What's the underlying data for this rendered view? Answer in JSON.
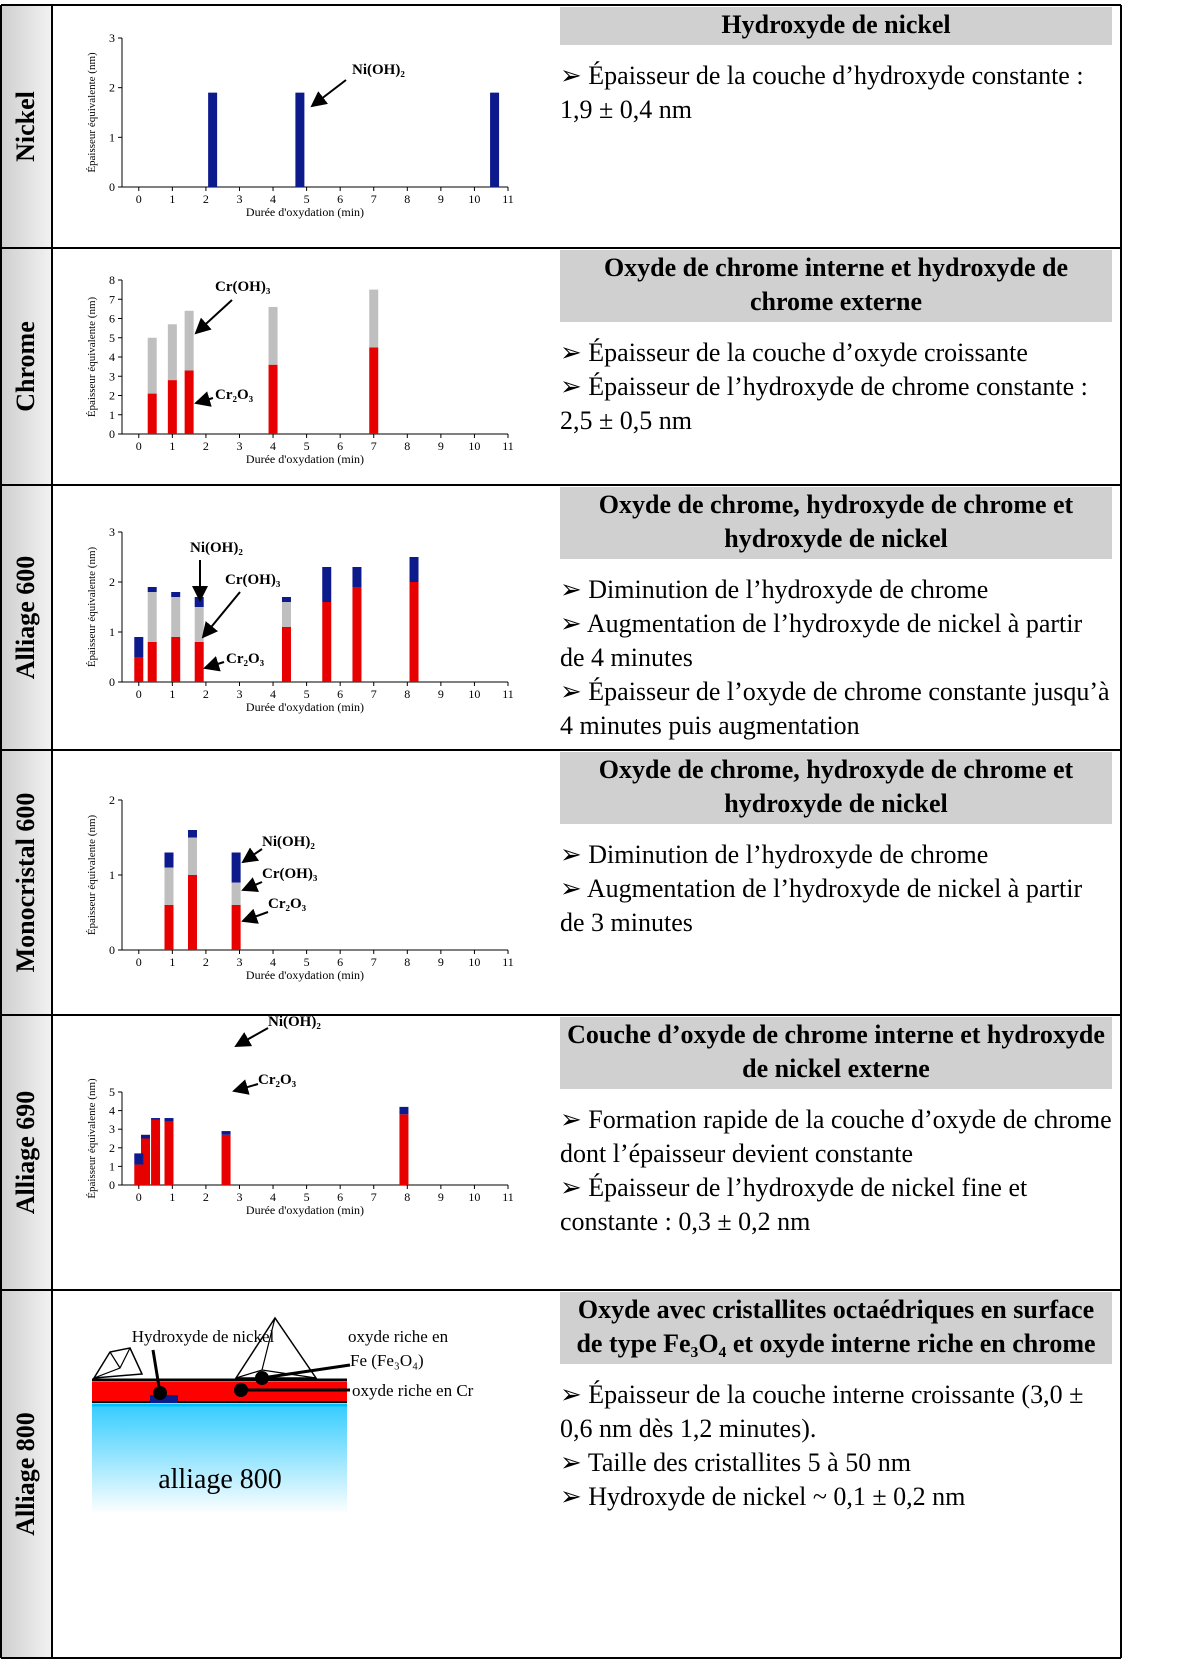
{
  "rows": [
    {
      "label": "Nickel",
      "chart_data": {
        "type": "bar",
        "stacked": true,
        "x": [
          2.2,
          4.8,
          10.6
        ],
        "series": [
          {
            "name": "Ni(OH)₂",
            "color": "#0d1a8c",
            "values": [
              1.9,
              1.9,
              1.9
            ]
          }
        ],
        "xlim": [
          -0.5,
          11
        ],
        "xticks": [
          0,
          1,
          2,
          3,
          4,
          5,
          6,
          7,
          8,
          9,
          10,
          11
        ],
        "ylim": [
          0,
          3
        ],
        "yticks": [
          0,
          1,
          2,
          3
        ],
        "xlabel": "Durée d'oxydation (min)",
        "ylabel": "Épaisseur équivalente (nm)"
      },
      "title": "Hydroxyde de nickel",
      "bullets": [
        " ➢ Épaisseur de la couche d’hydroxyde constante : 1,9 ± 0,4 nm"
      ]
    },
    {
      "label": "Chrome",
      "chart_data": {
        "type": "bar",
        "stacked": true,
        "x": [
          0.4,
          1.0,
          1.5,
          4.0,
          7.0
        ],
        "series": [
          {
            "name": "Cr₂O₃",
            "color": "#e60000",
            "values": [
              2.1,
              2.8,
              3.3,
              3.6,
              4.5
            ]
          },
          {
            "name": "Cr(OH)₃",
            "color": "#bfbfbf",
            "values": [
              2.9,
              2.9,
              3.1,
              3.0,
              3.0
            ]
          }
        ],
        "xlim": [
          -0.5,
          11
        ],
        "xticks": [
          0,
          1,
          2,
          3,
          4,
          5,
          6,
          7,
          8,
          9,
          10,
          11
        ],
        "ylim": [
          0,
          8
        ],
        "yticks": [
          0,
          1,
          2,
          3,
          4,
          5,
          6,
          7,
          8
        ],
        "xlabel": "Durée d'oxydation (min)",
        "ylabel": "Épaisseur équivalente (nm)"
      },
      "title": "Oxyde de chrome interne et hydroxyde de chrome externe",
      "bullets": [
        "➢ Épaisseur de la couche d’oxyde croissante",
        "➢ Épaisseur de l’hydroxyde de chrome constante : 2,5 ± 0,5 nm"
      ]
    },
    {
      "label": "Alliage 600",
      "chart_data": {
        "type": "bar",
        "stacked": true,
        "x": [
          0.0,
          0.4,
          1.1,
          1.8,
          4.4,
          5.6,
          6.5,
          8.2
        ],
        "series": [
          {
            "name": "Cr₂O₃",
            "color": "#e60000",
            "values": [
              0.5,
              0.8,
              0.9,
              0.8,
              1.1,
              1.6,
              1.9,
              2.0
            ]
          },
          {
            "name": "Cr(OH)₃",
            "color": "#bfbfbf",
            "values": [
              null,
              1.0,
              0.8,
              0.7,
              0.5,
              null,
              null,
              null
            ]
          },
          {
            "name": "Ni(OH)₂",
            "color": "#0d1a8c",
            "values": [
              0.4,
              0.1,
              0.1,
              0.2,
              0.1,
              0.7,
              0.4,
              0.5
            ]
          }
        ],
        "xlim": [
          -0.5,
          11
        ],
        "xticks": [
          0,
          1,
          2,
          3,
          4,
          5,
          6,
          7,
          8,
          9,
          10,
          11
        ],
        "ylim": [
          0,
          3
        ],
        "yticks": [
          0,
          1,
          2,
          3
        ],
        "xlabel": "Durée d'oxydation (min)",
        "ylabel": "Épaisseur équivalente (nm)"
      },
      "title": "Oxyde de chrome, hydroxyde de chrome et hydroxyde de nickel",
      "bullets": [
        "➢ Diminution de l’hydroxyde de chrome",
        "➢ Augmentation de l’hydroxyde de nickel à partir de 4 minutes",
        "➢ Épaisseur de l’oxyde de chrome constante jusqu’à 4 minutes puis augmentation"
      ]
    },
    {
      "label": "Monocristal 600",
      "chart_data": {
        "type": "bar",
        "stacked": true,
        "x": [
          0.9,
          1.6,
          2.9
        ],
        "series": [
          {
            "name": "Cr₂O₃",
            "color": "#e60000",
            "values": [
              0.6,
              1.0,
              0.6
            ]
          },
          {
            "name": "Cr(OH)₃",
            "color": "#bfbfbf",
            "values": [
              0.5,
              0.5,
              0.3
            ]
          },
          {
            "name": "Ni(OH)₂",
            "color": "#0d1a8c",
            "values": [
              0.2,
              0.1,
              0.4
            ]
          }
        ],
        "xlim": [
          -0.5,
          11
        ],
        "xticks": [
          0,
          1,
          2,
          3,
          4,
          5,
          6,
          7,
          8,
          9,
          10,
          11
        ],
        "ylim": [
          0,
          2
        ],
        "yticks": [
          0,
          1,
          2
        ],
        "xlabel": "Durée d'oxydation (min)",
        "ylabel": "Épaisseur équivalente (nm)"
      },
      "title": "Oxyde de chrome, hydroxyde de chrome et hydroxyde de nickel",
      "bullets": [
        "➢ Diminution de l’hydroxyde de chrome",
        "➢ Augmentation de l’hydroxyde de nickel à partir de 3 minutes"
      ]
    },
    {
      "label": "Alliage 690",
      "chart_data": {
        "type": "bar",
        "stacked": true,
        "x": [
          0.0,
          0.2,
          0.5,
          0.9,
          2.6,
          7.9
        ],
        "series": [
          {
            "name": "Cr₂O₃",
            "color": "#e60000",
            "values": [
              1.1,
              2.5,
              3.5,
              3.4,
              2.7,
              3.8
            ]
          },
          {
            "name": "Ni(OH)₂",
            "color": "#0d1a8c",
            "values": [
              0.6,
              0.2,
              0.1,
              0.2,
              0.2,
              0.4
            ]
          }
        ],
        "xlim": [
          -0.5,
          11
        ],
        "xticks": [
          0,
          1,
          2,
          3,
          4,
          5,
          6,
          7,
          8,
          9,
          10,
          11
        ],
        "ylim": [
          0,
          5
        ],
        "yticks": [
          0,
          1,
          2,
          3,
          4,
          5
        ],
        "xlabel": "Durée d'oxydation (min)",
        "ylabel": "Épaisseur équivalente (nm)"
      },
      "title": "Couche d’oxyde de chrome interne et hydroxyde de nickel externe",
      "bullets": [
        "➢ Formation  rapide de la couche d’oxyde de chrome dont l’épaisseur devient constante",
        " ➢ Épaisseur de l’hydroxyde de nickel fine et constante : 0,3 ± 0,2 nm"
      ]
    },
    {
      "label": "Alliage 800",
      "diagram": {
        "hydroxide": "Hydroxyde de nickel",
        "fe_oxide_1": "oxyde riche en",
        "fe_oxide_2": "Fe (Fe₃O₄)",
        "cr_oxide": "oxyde riche en Cr",
        "alloy": "alliage 800"
      },
      "title": "Oxyde avec cristallites octaédriques en surface de type Fe₃O₄ et oxyde interne riche en chrome",
      "bullets": [
        "➢ Épaisseur de la couche interne croissante (3,0 ± 0,6 nm dès 1,2 minutes).",
        "➢ Taille des cristallites 5 à 50 nm",
        "➢ Hydroxyde de nickel ~ 0,1 ± 0,2 nm"
      ]
    }
  ]
}
